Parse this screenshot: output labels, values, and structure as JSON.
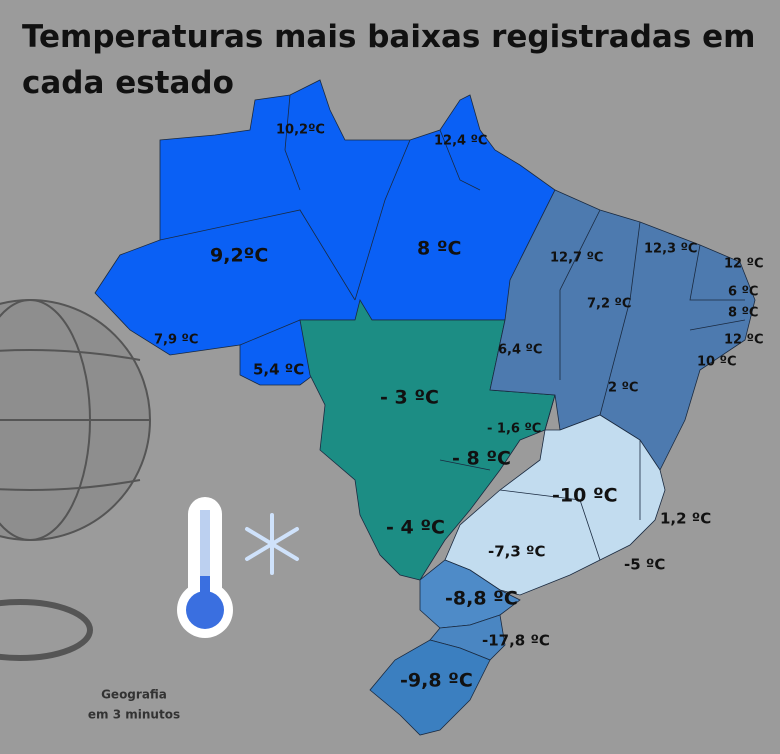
{
  "title": "Temperaturas mais baixas registradas em cada estado",
  "states": [
    {
      "label": "10,2ºC"
    },
    {
      "label": "12,4 ºC"
    },
    {
      "label": "9,2ºC"
    },
    {
      "label": "8 ºC"
    },
    {
      "label": "12,7 ºC"
    },
    {
      "label": "12,3 ºC"
    },
    {
      "label": "12 ºC"
    },
    {
      "label": "6 ºC"
    },
    {
      "label": "8 ºC"
    },
    {
      "label": "12 ºC"
    },
    {
      "label": "10 ºC"
    },
    {
      "label": "7,2 ºC"
    },
    {
      "label": "6,4 ºC"
    },
    {
      "label": "2 ºC"
    },
    {
      "label": "7,9 ºC"
    },
    {
      "label": "5,4 ºC"
    },
    {
      "label": "- 3 ºC"
    },
    {
      "label": "- 1,6 ºC"
    },
    {
      "label": "- 8 ºC"
    },
    {
      "label": "-10 ºC"
    },
    {
      "label": "1,2 ºC"
    },
    {
      "label": "- 4 ºC"
    },
    {
      "label": "-7,3 ºC"
    },
    {
      "label": "-5 ºC"
    },
    {
      "label": "-8,8 ºC"
    },
    {
      "label": "-17,8 ºC"
    },
    {
      "label": "-9,8 ºC"
    }
  ],
  "footer": [
    "Geografia",
    "em 3 minutos"
  ]
}
